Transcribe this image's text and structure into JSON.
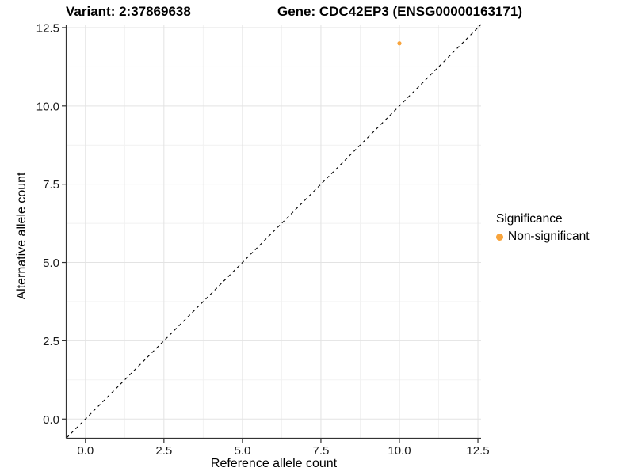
{
  "figure": {
    "title_left": "Variant: 2:37869638",
    "title_right": "Gene: CDC42EP3 (ENSG00000163171)"
  },
  "chart_data": {
    "type": "scatter",
    "title_left": "Variant: 2:37869638",
    "title_right": "Gene: CDC42EP3 (ENSG00000163171)",
    "xlabel": "Reference allele count",
    "ylabel": "Alternative allele count",
    "xlim": [
      -0.6,
      12.6
    ],
    "ylim": [
      -0.6,
      12.6
    ],
    "xticks": [
      0.0,
      2.5,
      5.0,
      7.5,
      10.0,
      12.5
    ],
    "yticks": [
      0.0,
      2.5,
      5.0,
      7.5,
      10.0,
      12.5
    ],
    "xminor": [
      1.25,
      3.75,
      6.25,
      8.75,
      11.25
    ],
    "yminor": [
      1.25,
      3.75,
      6.25,
      8.75,
      11.25
    ],
    "tick_decimals": 1,
    "grid": "major+minor",
    "points": [
      {
        "x": 10,
        "y": 12,
        "series": "Non-significant"
      }
    ],
    "identity_line": {
      "slope": 1,
      "intercept": 0,
      "style": "dashed"
    },
    "legend": {
      "title": "Significance",
      "position": "right",
      "items": [
        {
          "label": "Non-significant",
          "color": "#F8A43C"
        }
      ]
    },
    "colors": {
      "point": "#F8A43C",
      "grid_major": "#E3E3E3",
      "grid_minor": "#F1F1F1",
      "axis_line": "#333333",
      "tick_mark": "#333333",
      "tick_text": "#1A1A1A",
      "identity_line": "#000000",
      "background": "#FFFFFF"
    }
  }
}
